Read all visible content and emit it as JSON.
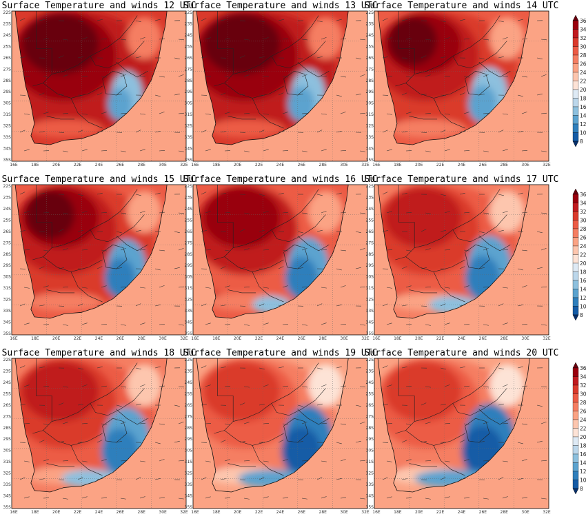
{
  "figure": {
    "panels": [
      {
        "title": "Surface Temperature and winds 12 UTC",
        "hour": 12
      },
      {
        "title": "Surface Temperature and winds 13 UTC",
        "hour": 13
      },
      {
        "title": "Surface Temperature and winds 14 UTC",
        "hour": 14
      },
      {
        "title": "Surface Temperature and winds 15 UTC",
        "hour": 15
      },
      {
        "title": "Surface Temperature and winds 16 UTC",
        "hour": 16
      },
      {
        "title": "Surface Temperature and winds 17 UTC",
        "hour": 17
      },
      {
        "title": "Surface Temperature and winds 18 UTC",
        "hour": 18
      },
      {
        "title": "Surface Temperature and winds 19 UTC",
        "hour": 19
      },
      {
        "title": "Surface Temperature and winds 20 UTC",
        "hour": 20
      }
    ],
    "lat_ticks": [
      "22S",
      "23S",
      "24S",
      "25S",
      "26S",
      "27S",
      "28S",
      "29S",
      "30S",
      "31S",
      "32S",
      "33S",
      "34S",
      "35S"
    ],
    "lon_ticks": [
      "16E",
      "18E",
      "20E",
      "22E",
      "24E",
      "26E",
      "28E",
      "30E",
      "32E"
    ],
    "colorbar": {
      "levels": [
        "36",
        "34",
        "32",
        "30",
        "28",
        "26",
        "24",
        "22",
        "20",
        "18",
        "16",
        "14",
        "12",
        "10",
        "8"
      ],
      "colors": [
        "#67000d",
        "#99000d",
        "#c01b1f",
        "#da3a2c",
        "#ec5b45",
        "#f57e62",
        "#fba384",
        "#fdc6ae",
        "#fde3d6",
        "#deeaf5",
        "#bcd7eb",
        "#8dc0de",
        "#5ba3cf",
        "#2f7fbc",
        "#145ba6",
        "#08306b"
      ]
    }
  }
}
